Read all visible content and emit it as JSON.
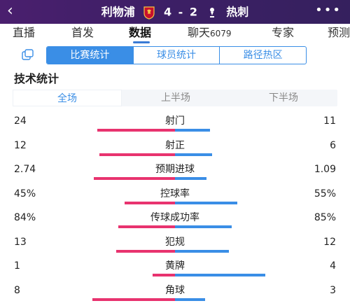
{
  "header": {
    "back_icon": "chevron-left-icon",
    "home_team": "利物浦",
    "home_score": "4",
    "separator": "-",
    "away_score": "2",
    "away_team": "热刺",
    "more_icon": "ellipsis-icon"
  },
  "tabs": [
    {
      "label": "直播",
      "active": false
    },
    {
      "label": "首发",
      "active": false
    },
    {
      "label": "数据",
      "active": true
    },
    {
      "label": "聊天",
      "count": "6079",
      "active": false
    },
    {
      "label": "专家",
      "active": false
    },
    {
      "label": "预测",
      "active": false
    }
  ],
  "segment": {
    "icon": "copy-icon",
    "items": [
      "比赛统计",
      "球员统计",
      "路径热区"
    ],
    "active_index": 0
  },
  "section_title": "技术统计",
  "periods": [
    "全场",
    "上半场",
    "下半场"
  ],
  "active_period": 0,
  "colors": {
    "home": "#e8336f",
    "away": "#3a8ee6",
    "header_bg": "#3d1f66"
  },
  "stats": [
    {
      "label": "射门",
      "home": "24",
      "away": "11",
      "home_share": 0.69,
      "away_share": 0.31
    },
    {
      "label": "射正",
      "home": "12",
      "away": "6",
      "home_share": 0.67,
      "away_share": 0.33
    },
    {
      "label": "预期进球",
      "home": "2.74",
      "away": "1.09",
      "home_share": 0.72,
      "away_share": 0.28
    },
    {
      "label": "控球率",
      "home": "45%",
      "away": "55%",
      "home_share": 0.45,
      "away_share": 0.55
    },
    {
      "label": "传球成功率",
      "home": "84%",
      "away": "85%",
      "home_share": 0.5,
      "away_share": 0.5
    },
    {
      "label": "犯规",
      "home": "13",
      "away": "12",
      "home_share": 0.52,
      "away_share": 0.48
    },
    {
      "label": "黄牌",
      "home": "1",
      "away": "4",
      "home_share": 0.2,
      "away_share": 0.8
    },
    {
      "label": "角球",
      "home": "8",
      "away": "3",
      "home_share": 0.73,
      "away_share": 0.27
    }
  ]
}
